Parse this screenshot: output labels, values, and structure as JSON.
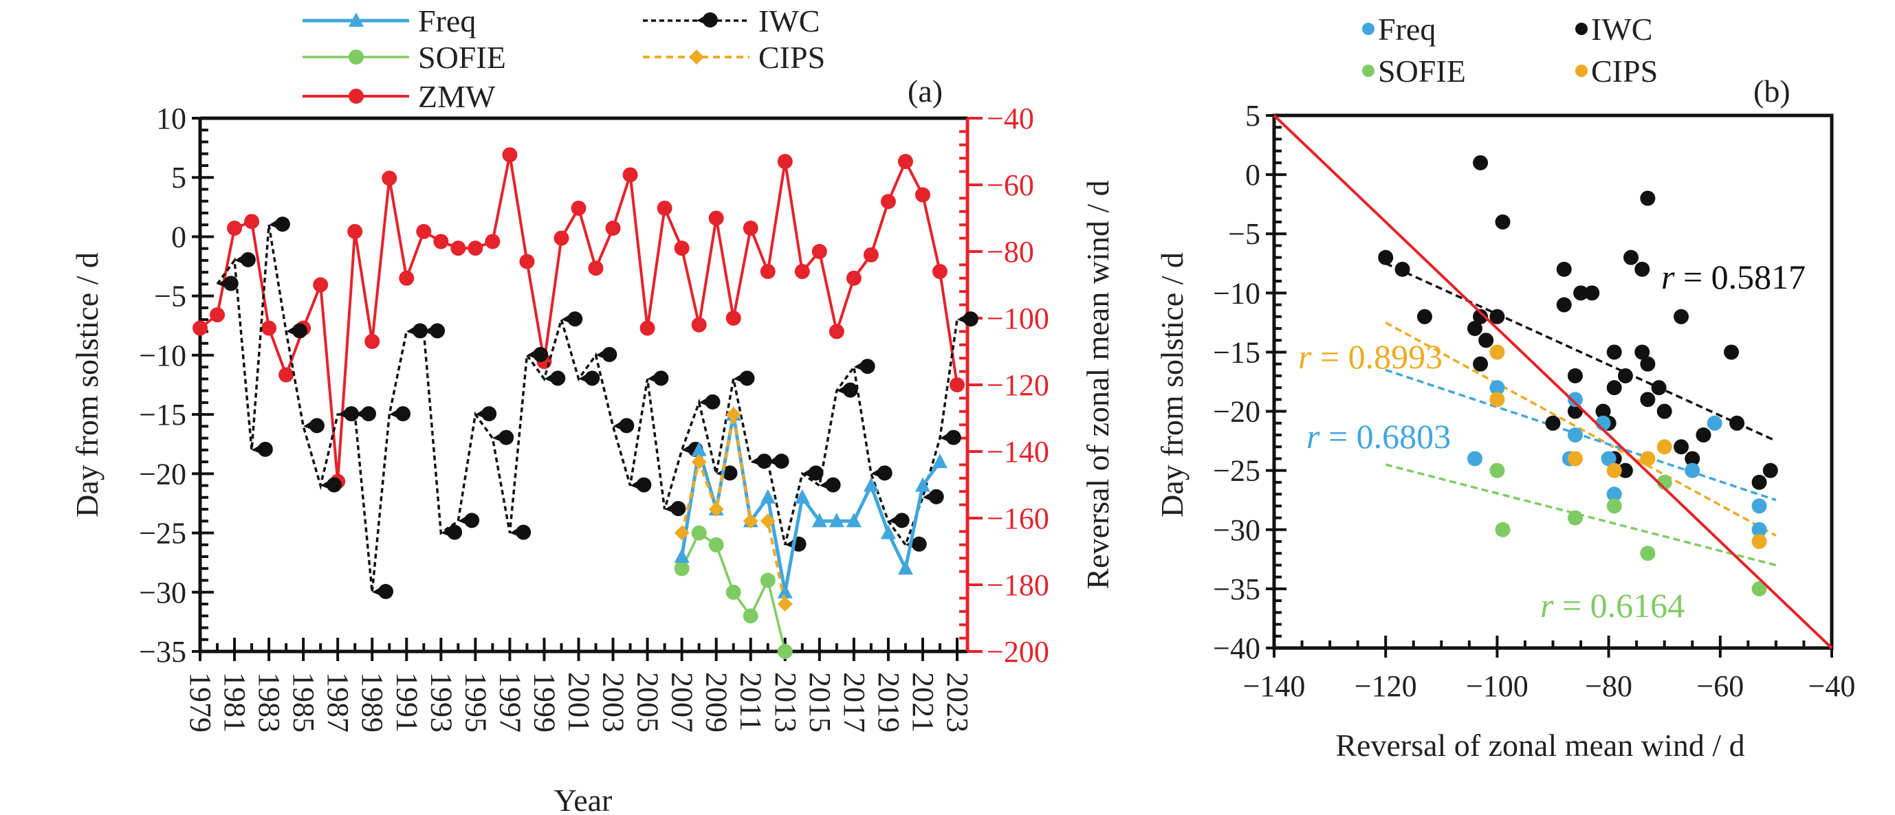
{
  "colors": {
    "freq": "#41a6dd",
    "sofie": "#7ecb63",
    "zmw": "#e5232b",
    "iwc": "#111111",
    "cips": "#eeaa22",
    "axis": "#111111",
    "text": "#231f20"
  },
  "chart_data": [
    {
      "panel": "(a)",
      "type": "line",
      "xlabel": "Year",
      "ylabel": "Day from solstice / d",
      "y2label": "Reversal of zonal mean wind / d",
      "xlim": [
        1979,
        2023
      ],
      "ylim": [
        -35,
        10
      ],
      "y2lim": [
        -200,
        -40
      ],
      "yticks": [
        10,
        5,
        0,
        -5,
        -10,
        -15,
        -20,
        -25,
        -30,
        -35
      ],
      "y2ticks": [
        -40,
        -60,
        -80,
        -100,
        -120,
        -140,
        -160,
        -180,
        -200
      ],
      "xticks": [
        1979,
        1981,
        1983,
        1985,
        1987,
        1989,
        1991,
        1993,
        1995,
        1997,
        1999,
        2001,
        2003,
        2005,
        2007,
        2009,
        2011,
        2013,
        2015,
        2017,
        2019,
        2021,
        2023
      ],
      "legend": [
        {
          "key": "freq",
          "label": "Freq",
          "style": "solid",
          "marker": "triangle"
        },
        {
          "key": "iwc",
          "label": "IWC",
          "style": "dotted",
          "marker": "pacman"
        },
        {
          "key": "sofie",
          "label": "SOFIE",
          "style": "solid",
          "marker": "circle"
        },
        {
          "key": "cips",
          "label": "CIPS",
          "style": "dashed",
          "marker": "diamond"
        },
        {
          "key": "zmw",
          "label": "ZMW",
          "style": "solid",
          "marker": "circle"
        }
      ],
      "series": [
        {
          "key": "zmw",
          "name": "ZMW",
          "axis": "right",
          "x": [
            1979,
            1980,
            1981,
            1982,
            1983,
            1984,
            1985,
            1986,
            1987,
            1988,
            1989,
            1990,
            1991,
            1992,
            1993,
            1994,
            1995,
            1996,
            1997,
            1998,
            1999,
            2000,
            2001,
            2002,
            2003,
            2004,
            2005,
            2006,
            2007,
            2008,
            2009,
            2010,
            2011,
            2012,
            2013,
            2014,
            2015,
            2016,
            2017,
            2018,
            2019,
            2020,
            2021,
            2022,
            2023
          ],
          "values": [
            -103,
            -99,
            -73,
            -71,
            -103,
            -117,
            -103,
            -90,
            -149,
            -74,
            -107,
            -58,
            -88,
            -74,
            -77,
            -79,
            -79,
            -77,
            -51,
            -83,
            -113,
            -76,
            -67,
            -85,
            -73,
            -57,
            -103,
            -67,
            -79,
            -102,
            -70,
            -100,
            -73,
            -86,
            -53,
            -86,
            -80,
            -104,
            -88,
            -81,
            -65,
            -53,
            -63,
            -86,
            -120
          ]
        },
        {
          "key": "iwc",
          "name": "IWC",
          "axis": "left",
          "x": [
            1980,
            1981,
            1982,
            1983,
            1984,
            1985,
            1986,
            1987,
            1988,
            1989,
            1990,
            1991,
            1992,
            1993,
            1994,
            1995,
            1996,
            1997,
            1998,
            1999,
            2000,
            2001,
            2002,
            2003,
            2004,
            2005,
            2006,
            2007,
            2008,
            2009,
            2010,
            2011,
            2012,
            2013,
            2014,
            2015,
            2016,
            2017,
            2018,
            2019,
            2020,
            2021,
            2022,
            2023
          ],
          "values": [
            -4,
            -2,
            -18,
            1,
            -8,
            -16,
            -21,
            -15,
            -15,
            -30,
            -15,
            -8,
            -8,
            -25,
            -24,
            -15,
            -17,
            -25,
            -10,
            -12,
            -7,
            -12,
            -10,
            -16,
            -21,
            -12,
            -23,
            -18,
            -14,
            -20,
            -12,
            -19,
            -19,
            -26,
            -20,
            -21,
            -13,
            -11,
            -20,
            -24,
            -26,
            -22,
            -17,
            -7
          ]
        },
        {
          "key": "freq",
          "name": "Freq",
          "axis": "left",
          "x": [
            2007,
            2008,
            2009,
            2010,
            2011,
            2012,
            2013,
            2014,
            2015,
            2016,
            2017,
            2018,
            2019,
            2020,
            2021,
            2022
          ],
          "values": [
            -27,
            -18,
            -23,
            -15,
            -24,
            -22,
            -30,
            -22,
            -24,
            -24,
            -24,
            -21,
            -25,
            -28,
            -21,
            -19
          ]
        },
        {
          "key": "sofie",
          "name": "SOFIE",
          "axis": "left",
          "x": [
            2007,
            2008,
            2009,
            2010,
            2011,
            2012,
            2013
          ],
          "values": [
            -28,
            -25,
            -26,
            -30,
            -32,
            -29,
            -35
          ]
        },
        {
          "key": "cips",
          "name": "CIPS",
          "axis": "left",
          "x": [
            2007,
            2008,
            2009,
            2010,
            2011,
            2012,
            2013
          ],
          "values": [
            -25,
            -19,
            -23,
            -15,
            -24,
            -24,
            -31
          ]
        }
      ]
    },
    {
      "panel": "(b)",
      "type": "scatter",
      "xlabel": "Reversal of zonal mean wind / d",
      "ylabel": "Day from solstice / d",
      "xlim": [
        -140,
        -40
      ],
      "ylim": [
        -40,
        5
      ],
      "xticks": [
        -140,
        -120,
        -100,
        -80,
        -60,
        -40
      ],
      "yticks": [
        5,
        0,
        -5,
        -10,
        -15,
        -20,
        -25,
        -30,
        -35,
        -40
      ],
      "legend": [
        {
          "key": "freq",
          "label": "Freq"
        },
        {
          "key": "iwc",
          "label": "IWC"
        },
        {
          "key": "sofie",
          "label": "SOFIE"
        },
        {
          "key": "cips",
          "label": "CIPS"
        }
      ],
      "series": [
        {
          "key": "iwc",
          "name": "IWC",
          "points": [
            [
              -120,
              -7
            ],
            [
              -117,
              -8
            ],
            [
              -113,
              -12
            ],
            [
              -103,
              1
            ],
            [
              -99,
              -4
            ],
            [
              -103,
              -12
            ],
            [
              -100,
              -12
            ],
            [
              -104,
              -13
            ],
            [
              -102,
              -14
            ],
            [
              -103,
              -16
            ],
            [
              -88,
              -8
            ],
            [
              -88,
              -11
            ],
            [
              -85,
              -10
            ],
            [
              -83,
              -10
            ],
            [
              -76,
              -7
            ],
            [
              -74,
              -8
            ],
            [
              -73,
              -2
            ],
            [
              -67,
              -12
            ],
            [
              -58,
              -15
            ],
            [
              -79,
              -15
            ],
            [
              -74,
              -15
            ],
            [
              -73,
              -16
            ],
            [
              -77,
              -17
            ],
            [
              -86,
              -17
            ],
            [
              -79,
              -18
            ],
            [
              -71,
              -18
            ],
            [
              -73,
              -19
            ],
            [
              -81,
              -20
            ],
            [
              -70,
              -20
            ],
            [
              -86,
              -20
            ],
            [
              -90,
              -21
            ],
            [
              -80,
              -21
            ],
            [
              -63,
              -22
            ],
            [
              -57,
              -21
            ],
            [
              -67,
              -23
            ],
            [
              -65,
              -24
            ],
            [
              -79,
              -24
            ],
            [
              -77,
              -25
            ],
            [
              -53,
              -26
            ],
            [
              -51,
              -25
            ]
          ],
          "fit": {
            "x": [
              -120,
              -50
            ],
            "y": [
              -7.5,
              -22.5
            ],
            "r": "0.5817"
          }
        },
        {
          "key": "freq",
          "name": "Freq",
          "points": [
            [
              -100,
              -18
            ],
            [
              -104,
              -24
            ],
            [
              -86,
              -19
            ],
            [
              -86,
              -22
            ],
            [
              -87,
              -24
            ],
            [
              -81,
              -21
            ],
            [
              -80,
              -24
            ],
            [
              -79,
              -27
            ],
            [
              -65,
              -25
            ],
            [
              -61,
              -21
            ],
            [
              -53,
              -28
            ],
            [
              -53,
              -30
            ]
          ],
          "fit": {
            "x": [
              -120,
              -50
            ],
            "y": [
              -16.5,
              -27.5
            ],
            "r": "0.6803"
          }
        },
        {
          "key": "sofie",
          "name": "SOFIE",
          "points": [
            [
              -100,
              -25
            ],
            [
              -99,
              -30
            ],
            [
              -86,
              -29
            ],
            [
              -79,
              -28
            ],
            [
              -73,
              -32
            ],
            [
              -70,
              -26
            ],
            [
              -53,
              -35
            ]
          ],
          "fit": {
            "x": [
              -120,
              -50
            ],
            "y": [
              -24.5,
              -33
            ],
            "r": "0.6164"
          }
        },
        {
          "key": "cips",
          "name": "CIPS",
          "points": [
            [
              -100,
              -15
            ],
            [
              -100,
              -19
            ],
            [
              -86,
              -24
            ],
            [
              -79,
              -25
            ],
            [
              -73,
              -24
            ],
            [
              -70,
              -23
            ],
            [
              -53,
              -31
            ]
          ],
          "fit": {
            "x": [
              -120,
              -50
            ],
            "y": [
              -12.5,
              -30.5
            ],
            "r": "0.8993"
          }
        }
      ],
      "reference_line": {
        "x": [
          -140,
          -40
        ],
        "y": [
          5,
          -40
        ],
        "color_key": "zmw"
      },
      "annotations": [
        {
          "key": "iwc",
          "prefix": "r",
          "text": " = 0.5817"
        },
        {
          "key": "cips",
          "prefix": "r",
          "text": " = 0.8993"
        },
        {
          "key": "freq",
          "prefix": "r",
          "text": " = 0.6803"
        },
        {
          "key": "sofie",
          "prefix": "r",
          "text": " = 0.6164"
        }
      ]
    }
  ]
}
